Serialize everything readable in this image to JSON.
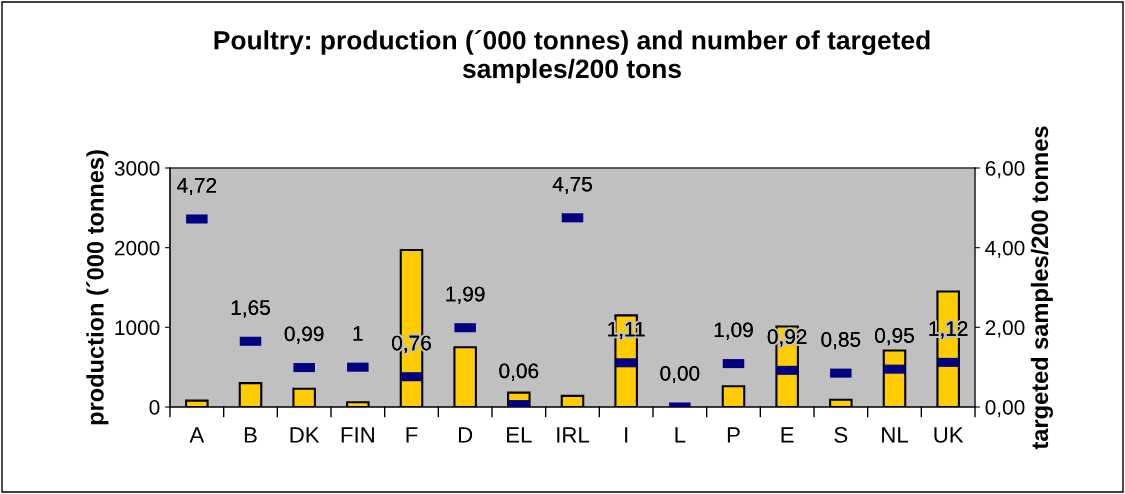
{
  "chart_data": {
    "type": "bar",
    "title": "Poultry: production (´000 tonnes) and number of targeted samples/200 tons",
    "categories": [
      "A",
      "B",
      "DK",
      "FIN",
      "F",
      "D",
      "EL",
      "IRL",
      "I",
      "L",
      "P",
      "E",
      "S",
      "NL",
      "UK"
    ],
    "ylabel": "production (´000 tonnes)",
    "y2label": "targeted samples/200 tonnes",
    "series": [
      {
        "color": "#ffcc00",
        "values": [
          80,
          300,
          230,
          60,
          1970,
          750,
          180,
          140,
          1150,
          null,
          260,
          1010,
          90,
          710,
          1450
        ]
      },
      {
        "type": "scatter",
        "axis": "y2",
        "color": "#000080",
        "values": [
          4.72,
          1.65,
          0.99,
          1,
          0.76,
          1.99,
          0.06,
          4.75,
          1.11,
          0.0,
          1.09,
          0.92,
          0.85,
          0.95,
          1.12
        ],
        "value_labels": [
          "4,72",
          "1,65",
          "0,99",
          "1",
          "0,76",
          "1,99",
          "0,06",
          "4,75",
          "1,11",
          "0,00",
          "1,09",
          "0,92",
          "0,85",
          "0,95",
          "1,12"
        ]
      }
    ],
    "ylim": [
      0,
      3000
    ],
    "yticks": [
      0,
      1000,
      2000,
      3000
    ],
    "y2lim": [
      0,
      6
    ],
    "y2ticks": [
      {
        "value": 0,
        "label": "0,00"
      },
      {
        "value": 2,
        "label": "2,00"
      },
      {
        "value": 4,
        "label": "4,00"
      },
      {
        "value": 6,
        "label": "6,00"
      }
    ],
    "grid": false,
    "legend": false
  }
}
